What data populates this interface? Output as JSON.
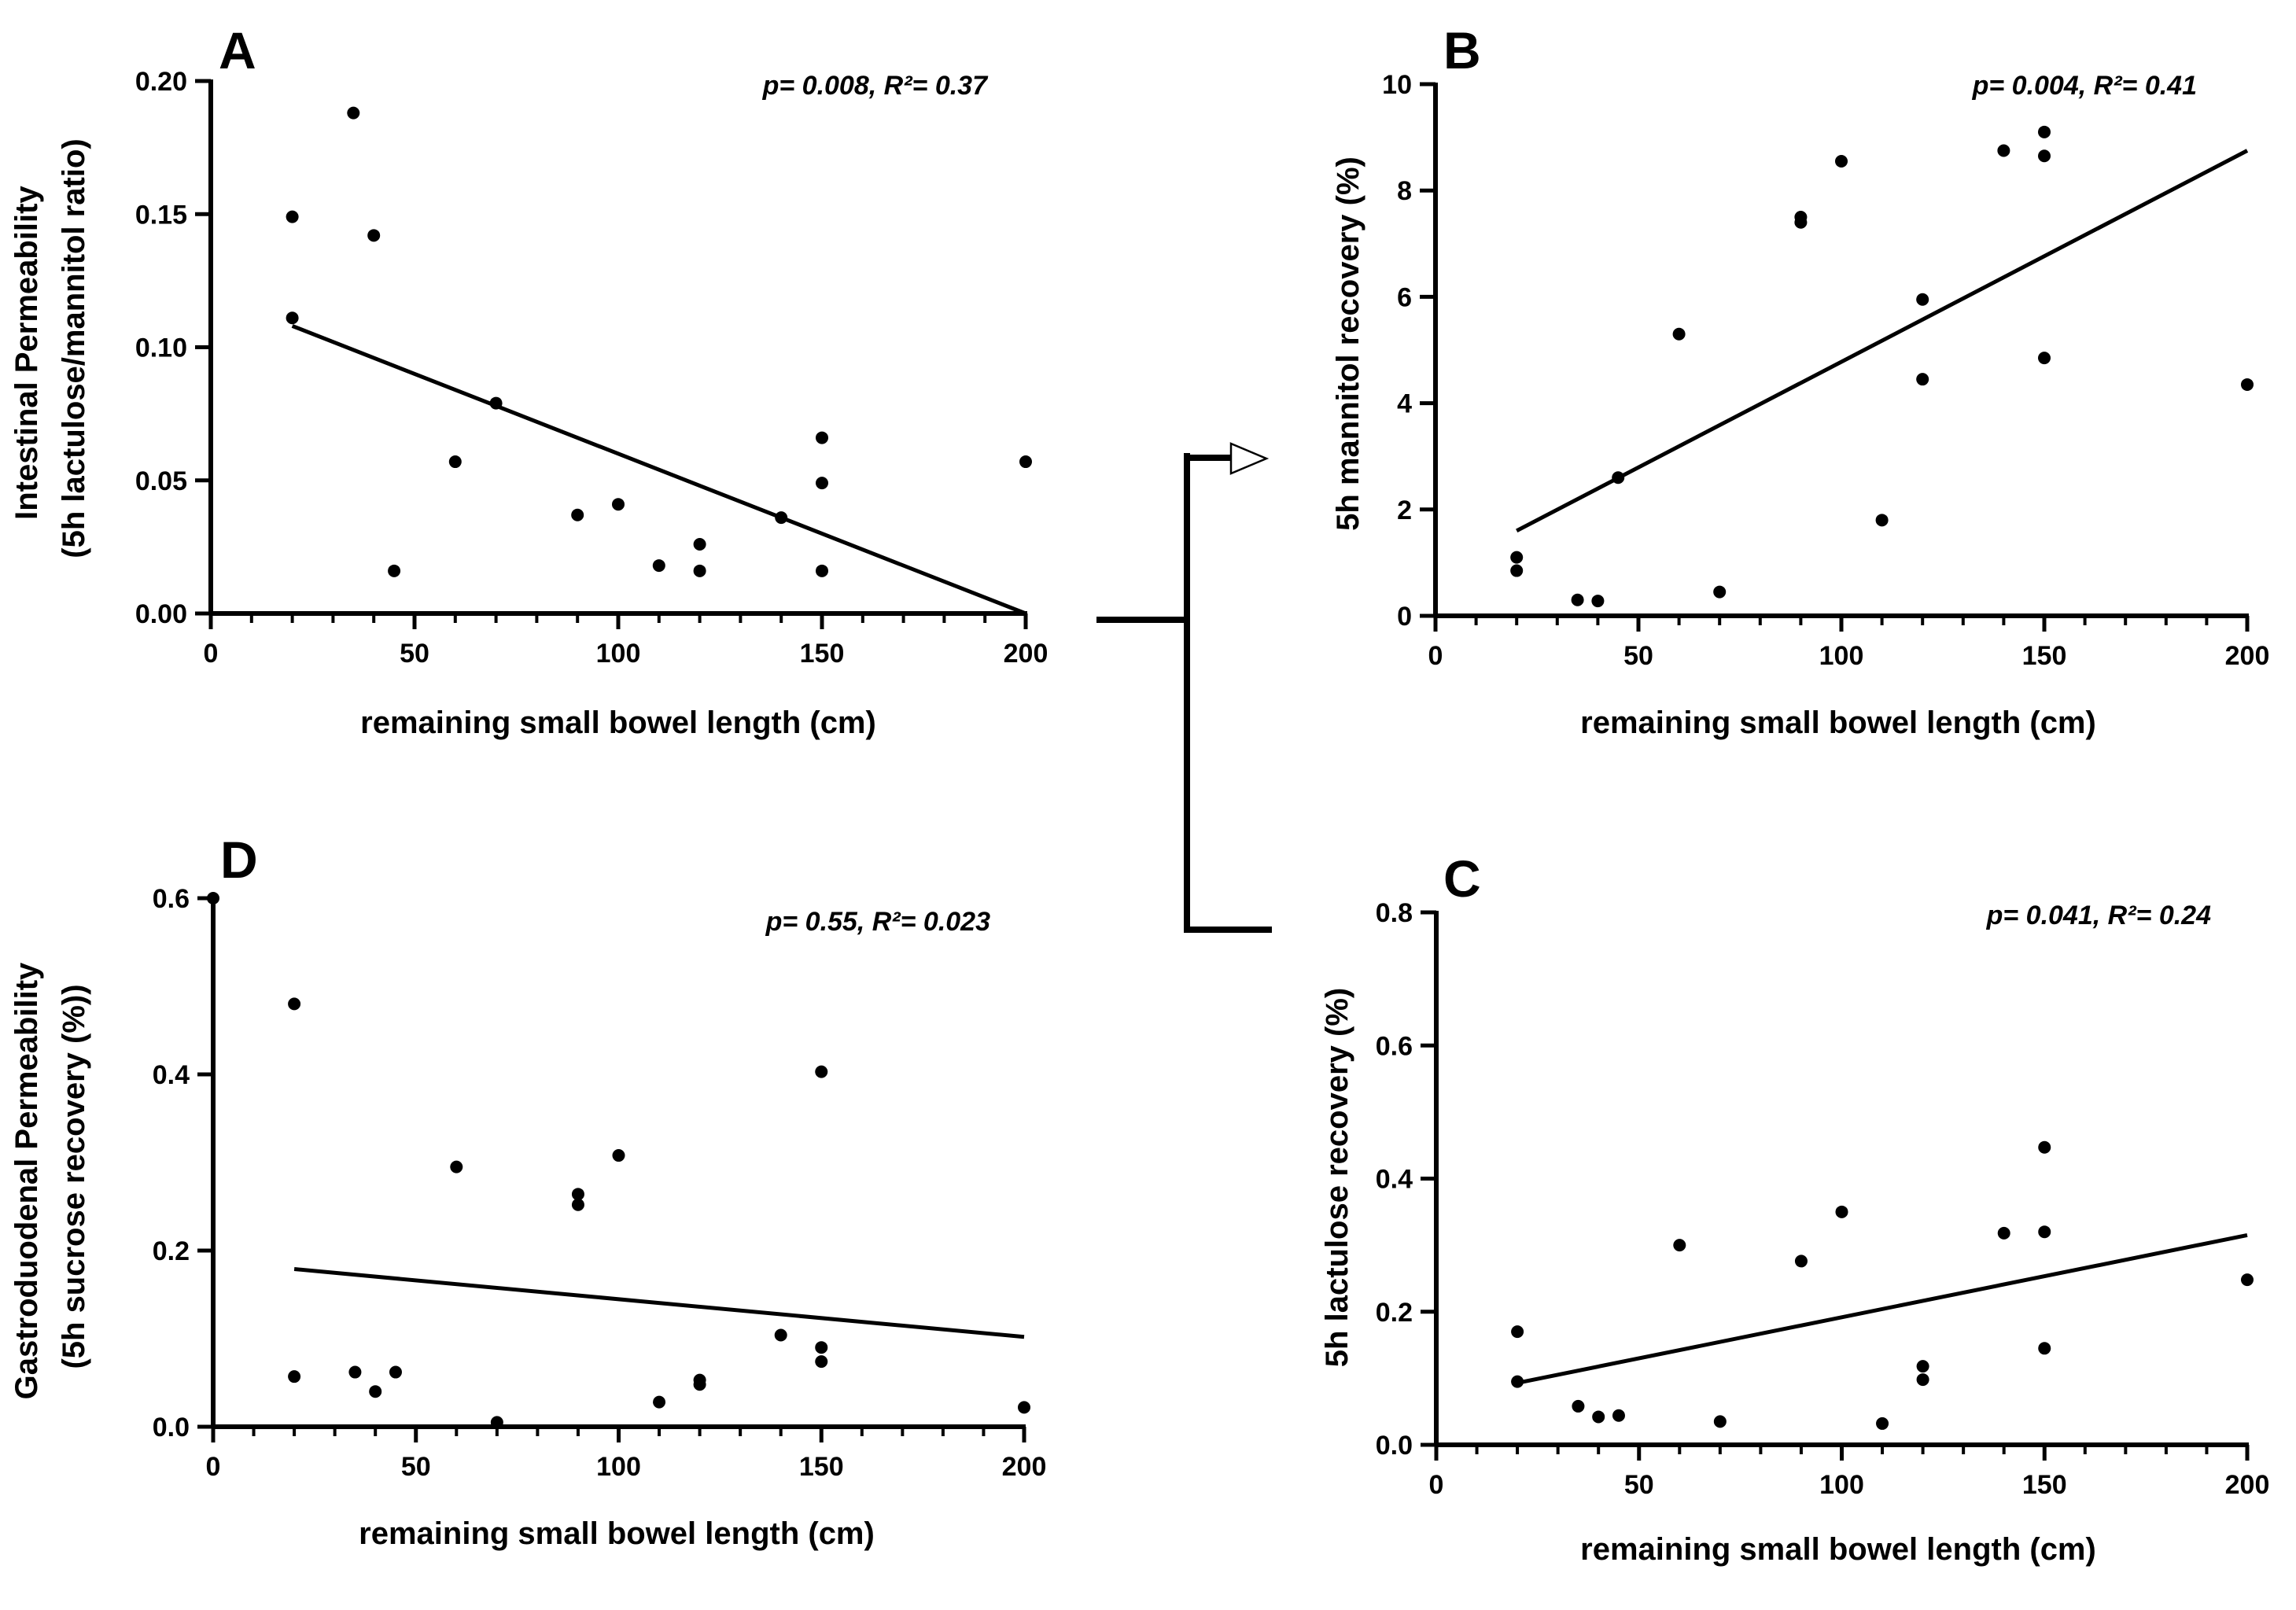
{
  "chart_data": [
    {
      "panel": "A",
      "type": "scatter",
      "stats": "p= 0.008, R²= 0.37",
      "xlabel": "remaining small bowel length (cm)",
      "ylabel_lines": [
        "Intestinal Permeability",
        "(5h lactulose/mannitol ratio)"
      ],
      "xlim": [
        0,
        200
      ],
      "ylim": [
        0,
        0.2
      ],
      "xticks": [
        "0",
        "50",
        "100",
        "150",
        "200"
      ],
      "yticks": [
        "0.00",
        "0.05",
        "0.10",
        "0.15",
        "0.20"
      ],
      "fit": {
        "x": [
          20,
          200
        ],
        "y": [
          0.108,
          0.0
        ]
      },
      "points": [
        [
          20,
          0.149
        ],
        [
          20,
          0.111
        ],
        [
          35,
          0.188
        ],
        [
          40,
          0.142
        ],
        [
          45,
          0.016
        ],
        [
          60,
          0.057
        ],
        [
          70,
          0.079
        ],
        [
          90,
          0.037
        ],
        [
          100,
          0.041
        ],
        [
          110,
          0.018
        ],
        [
          120,
          0.016
        ],
        [
          120,
          0.026
        ],
        [
          140,
          0.036
        ],
        [
          150,
          0.016
        ],
        [
          150,
          0.049
        ],
        [
          150,
          0.066
        ],
        [
          200,
          0.057
        ]
      ]
    },
    {
      "panel": "B",
      "type": "scatter",
      "stats": "p= 0.004, R²= 0.41",
      "xlabel": "remaining small bowel length  (cm)",
      "ylabel_lines": [
        "5h mannitol recovery (%)"
      ],
      "xlim": [
        0,
        200
      ],
      "ylim": [
        0,
        10
      ],
      "xticks": [
        "0",
        "50",
        "100",
        "150",
        "200"
      ],
      "yticks": [
        "0",
        "2",
        "4",
        "6",
        "8",
        "10"
      ],
      "fit": {
        "x": [
          20,
          200
        ],
        "y": [
          1.6,
          8.75
        ]
      },
      "points": [
        [
          20,
          1.1
        ],
        [
          20,
          0.85
        ],
        [
          35,
          0.3
        ],
        [
          40,
          0.28
        ],
        [
          45,
          2.6
        ],
        [
          60,
          5.3
        ],
        [
          70,
          0.45
        ],
        [
          90,
          7.4
        ],
        [
          90,
          7.5
        ],
        [
          100,
          8.55
        ],
        [
          110,
          1.8
        ],
        [
          120,
          5.95
        ],
        [
          120,
          4.45
        ],
        [
          140,
          8.75
        ],
        [
          150,
          9.1
        ],
        [
          150,
          8.65
        ],
        [
          150,
          4.85
        ],
        [
          200,
          4.35
        ]
      ]
    },
    {
      "panel": "C",
      "type": "scatter",
      "stats": "p= 0.041, R²= 0.24",
      "xlabel": "remaining small bowel length (cm)",
      "ylabel_lines": [
        "5h lactulose recovery (%)"
      ],
      "xlim": [
        0,
        200
      ],
      "ylim": [
        0,
        0.8
      ],
      "xticks": [
        "0",
        "50",
        "100",
        "150",
        "200"
      ],
      "yticks": [
        "0.0",
        "0.2",
        "0.4",
        "0.6",
        "0.8"
      ],
      "fit": {
        "x": [
          20,
          200
        ],
        "y": [
          0.093,
          0.315
        ]
      },
      "points": [
        [
          20,
          0.17
        ],
        [
          20,
          0.095
        ],
        [
          35,
          0.058
        ],
        [
          40,
          0.042
        ],
        [
          45,
          0.044
        ],
        [
          60,
          0.3
        ],
        [
          70,
          0.035
        ],
        [
          90,
          0.276
        ],
        [
          100,
          0.35
        ],
        [
          110,
          0.032
        ],
        [
          120,
          0.118
        ],
        [
          120,
          0.098
        ],
        [
          140,
          0.318
        ],
        [
          150,
          0.447
        ],
        [
          150,
          0.32
        ],
        [
          150,
          0.145
        ],
        [
          200,
          0.248
        ]
      ]
    },
    {
      "panel": "D",
      "type": "scatter",
      "stats": "p= 0.55, R²= 0.023",
      "xlabel": "remaining small bowel length (cm)",
      "ylabel_lines": [
        "Gastroduodenal Permeability",
        "(5h sucrose recovery (%))"
      ],
      "xlim": [
        0,
        200
      ],
      "ylim": [
        0,
        0.6
      ],
      "xticks": [
        "0",
        "50",
        "100",
        "150",
        "200"
      ],
      "yticks": [
        "0.0",
        "0.2",
        "0.4",
        "0.6"
      ],
      "fit": {
        "x": [
          20,
          200
        ],
        "y": [
          0.179,
          0.102
        ]
      },
      "points": [
        [
          0,
          0.6
        ],
        [
          20,
          0.48
        ],
        [
          20,
          0.057
        ],
        [
          35,
          0.062
        ],
        [
          40,
          0.04
        ],
        [
          45,
          0.062
        ],
        [
          60,
          0.295
        ],
        [
          70,
          0.005
        ],
        [
          90,
          0.264
        ],
        [
          90,
          0.252
        ],
        [
          100,
          0.308
        ],
        [
          110,
          0.028
        ],
        [
          120,
          0.053
        ],
        [
          120,
          0.048
        ],
        [
          140,
          0.104
        ],
        [
          150,
          0.403
        ],
        [
          150,
          0.09
        ],
        [
          150,
          0.074
        ],
        [
          200,
          0.022
        ]
      ]
    }
  ]
}
